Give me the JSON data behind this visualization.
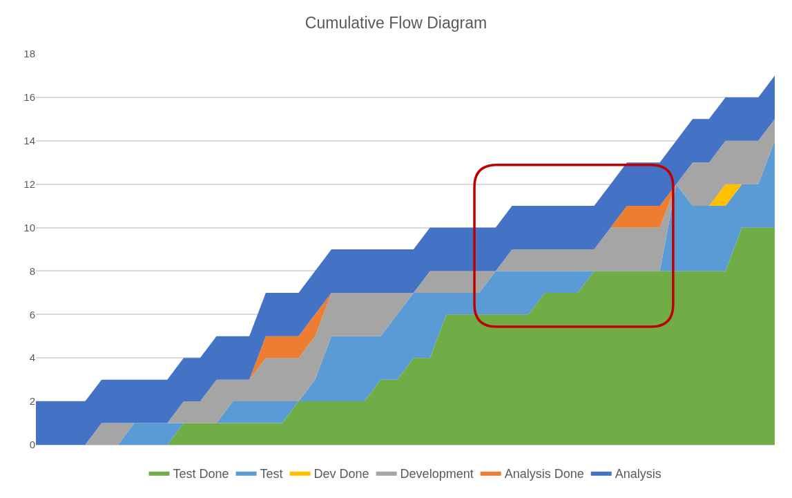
{
  "chart_data": {
    "type": "area",
    "title": "Cumulative Flow Diagram",
    "stacked": true,
    "categories": [
      null,
      null,
      null,
      null,
      null,
      null,
      null,
      null,
      null,
      null,
      null,
      null,
      null,
      null,
      null,
      null,
      null,
      null,
      null,
      null,
      null,
      null,
      null,
      null,
      null,
      null,
      null,
      null,
      null,
      null,
      null,
      null,
      null,
      null,
      null,
      null,
      null,
      null,
      null,
      null,
      null,
      null,
      null,
      null,
      null,
      null
    ],
    "series": [
      {
        "name": "Test Done",
        "color": "#70ad47",
        "values": [
          0,
          0,
          0,
          0,
          0,
          0,
          0,
          0,
          0,
          1,
          1,
          1,
          1,
          1,
          1,
          1,
          2,
          2,
          2,
          2,
          2,
          3,
          3,
          4,
          4,
          6,
          6,
          6,
          6,
          6,
          6,
          7,
          7,
          7,
          8,
          8,
          8,
          8,
          8,
          8,
          8,
          8,
          8,
          10,
          10,
          10
        ]
      },
      {
        "name": "Test",
        "color": "#5b9bd5",
        "values": [
          0,
          0,
          0,
          0,
          0,
          0,
          1,
          1,
          1,
          0,
          0,
          0,
          1,
          1,
          1,
          1,
          0,
          1,
          3,
          3,
          3,
          2,
          3,
          3,
          3,
          1,
          1,
          1,
          2,
          2,
          2,
          1,
          1,
          1,
          0,
          0,
          0,
          0,
          0,
          4,
          3,
          3,
          3,
          2,
          2,
          4
        ]
      },
      {
        "name": "Dev Done",
        "color": "#ffc000",
        "values": [
          null,
          null,
          null,
          null,
          null,
          null,
          null,
          null,
          null,
          null,
          null,
          null,
          null,
          null,
          null,
          null,
          null,
          null,
          null,
          null,
          null,
          null,
          null,
          null,
          null,
          null,
          null,
          null,
          null,
          null,
          null,
          null,
          null,
          null,
          null,
          null,
          null,
          null,
          null,
          null,
          null,
          0,
          1,
          0,
          null,
          null
        ]
      },
      {
        "name": "Development",
        "color": "#a5a5a5",
        "values": [
          0,
          0,
          0,
          0,
          1,
          1,
          0,
          0,
          0,
          1,
          1,
          2,
          1,
          1,
          2,
          2,
          2,
          2,
          2,
          2,
          2,
          2,
          1,
          0,
          1,
          1,
          1,
          1,
          0,
          1,
          1,
          1,
          1,
          1,
          1,
          2,
          2,
          2,
          2,
          0,
          2,
          2,
          2,
          2,
          2,
          1
        ]
      },
      {
        "name": "Analysis Done",
        "color": "#ed7d31",
        "values": [
          null,
          null,
          null,
          null,
          null,
          null,
          null,
          null,
          null,
          null,
          null,
          null,
          null,
          0,
          1,
          1,
          1,
          1,
          0,
          null,
          null,
          null,
          null,
          null,
          null,
          null,
          null,
          null,
          null,
          null,
          null,
          null,
          null,
          null,
          null,
          0,
          1,
          1,
          1,
          0,
          null,
          null,
          null,
          null,
          null,
          null
        ]
      },
      {
        "name": "Analysis",
        "color": "#4472c4",
        "values": [
          2,
          2,
          2,
          2,
          2,
          2,
          2,
          2,
          2,
          2,
          2,
          2,
          2,
          2,
          2,
          2,
          2,
          2,
          2,
          2,
          2,
          2,
          2,
          2,
          2,
          2,
          2,
          2,
          2,
          2,
          2,
          2,
          2,
          2,
          2,
          2,
          2,
          2,
          2,
          2,
          2,
          2,
          2,
          2,
          2,
          2
        ]
      }
    ],
    "ylim": [
      0,
      18
    ],
    "yticks": [
      0,
      2,
      4,
      6,
      8,
      10,
      12,
      14,
      16,
      18
    ],
    "grid": "y",
    "legend": "bottom"
  }
}
